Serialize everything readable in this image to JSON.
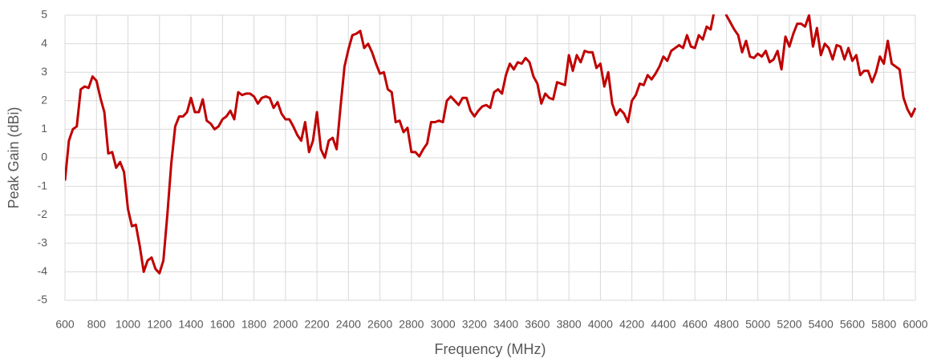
{
  "chart_data": {
    "type": "line",
    "xlabel": "Frequency (MHz)",
    "ylabel": "Peak Gain (dBi)",
    "xlim": [
      600,
      6000
    ],
    "ylim": [
      -5,
      5
    ],
    "xticks": [
      600,
      800,
      1000,
      1200,
      1400,
      1600,
      1800,
      2000,
      2200,
      2400,
      2600,
      2800,
      3000,
      3200,
      3400,
      3600,
      3800,
      4000,
      4200,
      4400,
      4600,
      4800,
      5000,
      5200,
      5400,
      5600,
      5800,
      6000
    ],
    "yticks": [
      -5,
      -4,
      -3,
      -2,
      -1,
      0,
      1,
      2,
      3,
      4,
      5
    ],
    "grid": true,
    "series": [
      {
        "name": "Peak Gain",
        "color": "#c00000",
        "x": [
          600,
          625,
          650,
          675,
          700,
          725,
          750,
          775,
          800,
          825,
          850,
          875,
          900,
          925,
          950,
          975,
          1000,
          1025,
          1050,
          1075,
          1100,
          1125,
          1150,
          1175,
          1200,
          1225,
          1250,
          1275,
          1300,
          1325,
          1350,
          1375,
          1400,
          1425,
          1450,
          1475,
          1500,
          1525,
          1550,
          1575,
          1600,
          1625,
          1650,
          1675,
          1700,
          1725,
          1750,
          1775,
          1800,
          1825,
          1850,
          1875,
          1900,
          1925,
          1950,
          1975,
          2000,
          2025,
          2050,
          2075,
          2100,
          2125,
          2150,
          2175,
          2200,
          2225,
          2250,
          2275,
          2300,
          2325,
          2350,
          2375,
          2400,
          2425,
          2450,
          2475,
          2500,
          2525,
          2550,
          2575,
          2600,
          2625,
          2650,
          2675,
          2700,
          2725,
          2750,
          2775,
          2800,
          2825,
          2850,
          2875,
          2900,
          2925,
          2950,
          2975,
          3000,
          3025,
          3050,
          3075,
          3100,
          3125,
          3150,
          3175,
          3200,
          3225,
          3250,
          3275,
          3300,
          3325,
          3350,
          3375,
          3400,
          3425,
          3450,
          3475,
          3500,
          3525,
          3550,
          3575,
          3600,
          3625,
          3650,
          3675,
          3700,
          3725,
          3750,
          3775,
          3800,
          3825,
          3850,
          3875,
          3900,
          3925,
          3950,
          3975,
          4000,
          4025,
          4050,
          4075,
          4100,
          4125,
          4150,
          4175,
          4200,
          4225,
          4250,
          4275,
          4300,
          4325,
          4350,
          4375,
          4400,
          4425,
          4450,
          4475,
          4500,
          4525,
          4550,
          4575,
          4600,
          4625,
          4650,
          4675,
          4700,
          4725,
          4750,
          4775,
          4800,
          4825,
          4850,
          4875,
          4900,
          4925,
          4950,
          4975,
          5000,
          5025,
          5050,
          5075,
          5100,
          5125,
          5150,
          5175,
          5200,
          5225,
          5250,
          5275,
          5300,
          5325,
          5350,
          5375,
          5400,
          5425,
          5450,
          5475,
          5500,
          5525,
          5550,
          5575,
          5600,
          5625,
          5650,
          5675,
          5700,
          5725,
          5750,
          5775,
          5800,
          5825,
          5850,
          5875,
          5900,
          5925,
          5950,
          5975,
          6000
        ],
        "values": [
          -0.8,
          0.6,
          1.0,
          1.1,
          2.4,
          2.5,
          2.45,
          2.85,
          2.7,
          2.1,
          1.6,
          0.15,
          0.2,
          -0.35,
          -0.15,
          -0.5,
          -1.8,
          -2.4,
          -2.35,
          -3.1,
          -4.0,
          -3.6,
          -3.5,
          -3.9,
          -4.05,
          -3.6,
          -2.0,
          -0.2,
          1.1,
          1.45,
          1.45,
          1.6,
          2.1,
          1.6,
          1.6,
          2.05,
          1.3,
          1.2,
          1.0,
          1.1,
          1.35,
          1.45,
          1.65,
          1.35,
          2.3,
          2.2,
          2.25,
          2.25,
          2.15,
          1.9,
          2.1,
          2.15,
          2.1,
          1.75,
          1.95,
          1.55,
          1.35,
          1.35,
          1.1,
          0.8,
          0.6,
          1.25,
          0.2,
          0.6,
          1.6,
          0.3,
          0.0,
          0.6,
          0.7,
          0.3,
          1.8,
          3.2,
          3.8,
          4.3,
          4.35,
          4.45,
          3.85,
          4.0,
          3.7,
          3.3,
          2.95,
          3.0,
          2.4,
          2.3,
          1.25,
          1.3,
          0.9,
          1.05,
          0.2,
          0.2,
          0.05,
          0.3,
          0.5,
          1.25,
          1.25,
          1.3,
          1.25,
          2.0,
          2.15,
          2.0,
          1.85,
          2.1,
          2.1,
          1.65,
          1.45,
          1.65,
          1.8,
          1.85,
          1.75,
          2.3,
          2.4,
          2.25,
          2.9,
          3.3,
          3.1,
          3.35,
          3.3,
          3.5,
          3.35,
          2.85,
          2.6,
          1.9,
          2.25,
          2.1,
          2.05,
          2.65,
          2.6,
          2.55,
          3.6,
          3.05,
          3.6,
          3.35,
          3.75,
          3.7,
          3.7,
          3.15,
          3.3,
          2.5,
          3.0,
          1.9,
          1.5,
          1.7,
          1.55,
          1.25,
          2.0,
          2.2,
          2.6,
          2.55,
          2.9,
          2.75,
          2.95,
          3.2,
          3.55,
          3.4,
          3.75,
          3.85,
          3.95,
          3.85,
          4.3,
          3.9,
          3.85,
          4.3,
          4.15,
          4.6,
          4.5,
          5.2,
          5.8,
          5.6,
          5.0,
          4.75,
          4.5,
          4.3,
          3.7,
          4.1,
          3.55,
          3.5,
          3.65,
          3.55,
          3.75,
          3.35,
          3.45,
          3.75,
          3.1,
          4.25,
          3.9,
          4.35,
          4.7,
          4.7,
          4.6,
          5.0,
          3.9,
          4.55,
          3.6,
          4.0,
          3.85,
          3.45,
          3.95,
          3.9,
          3.45,
          3.85,
          3.4,
          3.6,
          2.9,
          3.05,
          3.05,
          2.65,
          3.0,
          3.55,
          3.3,
          4.1,
          3.3,
          3.2,
          3.1,
          2.1,
          1.7,
          1.45,
          1.75
        ]
      }
    ]
  }
}
